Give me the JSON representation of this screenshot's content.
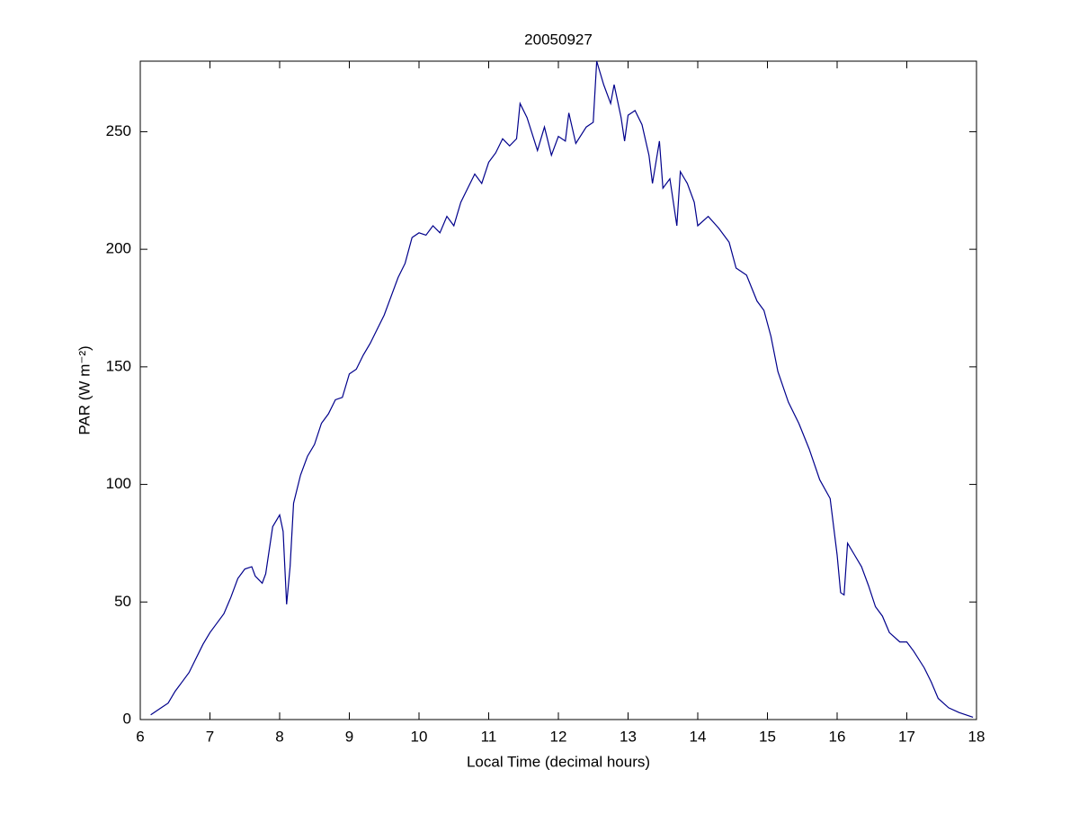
{
  "chart_data": {
    "type": "line",
    "title": "20050927",
    "xlabel": "Local Time (decimal hours)",
    "ylabel": "PAR (W m⁻²)",
    "x": [
      6.15,
      6.3,
      6.4,
      6.5,
      6.6,
      6.7,
      6.8,
      6.9,
      7.0,
      7.1,
      7.2,
      7.3,
      7.4,
      7.5,
      7.6,
      7.65,
      7.75,
      7.8,
      7.9,
      8.0,
      8.05,
      8.1,
      8.15,
      8.2,
      8.3,
      8.4,
      8.5,
      8.6,
      8.7,
      8.8,
      8.9,
      9.0,
      9.1,
      9.2,
      9.3,
      9.4,
      9.5,
      9.6,
      9.7,
      9.8,
      9.9,
      10.0,
      10.1,
      10.2,
      10.3,
      10.4,
      10.5,
      10.6,
      10.7,
      10.8,
      10.9,
      11.0,
      11.1,
      11.2,
      11.3,
      11.4,
      11.45,
      11.55,
      11.7,
      11.8,
      11.9,
      12.0,
      12.1,
      12.15,
      12.25,
      12.4,
      12.5,
      12.55,
      12.65,
      12.75,
      12.8,
      12.9,
      12.95,
      13.0,
      13.1,
      13.2,
      13.3,
      13.35,
      13.45,
      13.5,
      13.6,
      13.7,
      13.75,
      13.85,
      13.95,
      14.0,
      14.15,
      14.3,
      14.45,
      14.55,
      14.7,
      14.85,
      14.95,
      15.05,
      15.15,
      15.3,
      15.45,
      15.6,
      15.75,
      15.9,
      16.0,
      16.05,
      16.1,
      16.15,
      16.25,
      16.35,
      16.45,
      16.55,
      16.65,
      16.75,
      16.9,
      17.0,
      17.1,
      17.25,
      17.35,
      17.45,
      17.6,
      17.75,
      17.95
    ],
    "series": [
      {
        "name": "PAR",
        "color": "#00008b",
        "values": [
          2,
          5,
          7,
          12,
          16,
          20,
          26,
          32,
          37,
          41,
          45,
          52,
          60,
          64,
          65,
          61,
          58,
          62,
          82,
          87,
          80,
          49,
          65,
          92,
          104,
          112,
          117,
          126,
          130,
          136,
          137,
          147,
          149,
          155,
          160,
          166,
          172,
          180,
          188,
          194,
          205,
          207,
          206,
          210,
          207,
          214,
          210,
          220,
          226,
          232,
          228,
          237,
          241,
          247,
          244,
          247,
          262,
          256,
          242,
          252,
          240,
          248,
          246,
          258,
          245,
          252,
          254,
          280,
          270,
          262,
          270,
          256,
          246,
          257,
          259,
          253,
          240,
          228,
          246,
          226,
          230,
          210,
          233,
          228,
          220,
          210,
          214,
          209,
          203,
          192,
          189,
          178,
          174,
          163,
          148,
          135,
          126,
          115,
          102,
          94,
          70,
          54,
          53,
          75,
          70,
          65,
          57,
          48,
          44,
          37,
          33,
          33,
          29,
          22,
          16,
          9,
          5,
          3,
          1
        ]
      }
    ],
    "xlim": [
      6,
      18
    ],
    "xticks": [
      6,
      7,
      8,
      9,
      10,
      11,
      12,
      13,
      14,
      15,
      16,
      17,
      18
    ],
    "ylim": [
      0,
      280
    ],
    "yticks": [
      0,
      50,
      100,
      150,
      200,
      250
    ]
  }
}
